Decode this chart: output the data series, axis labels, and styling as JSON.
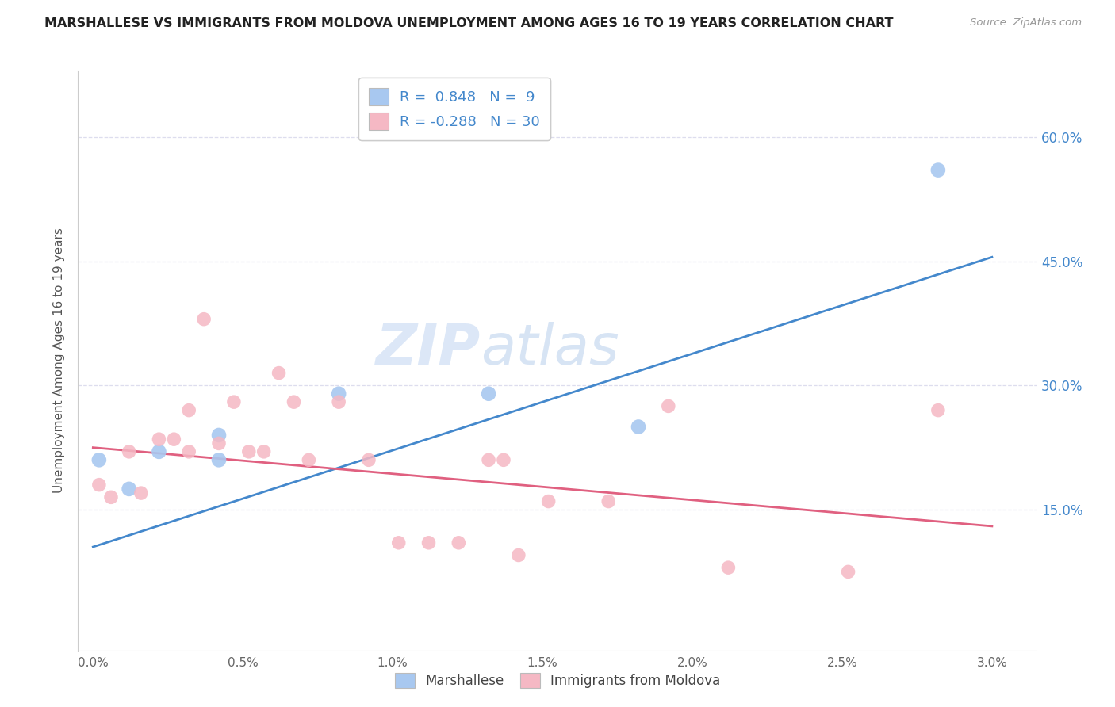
{
  "title": "MARSHALLESE VS IMMIGRANTS FROM MOLDOVA UNEMPLOYMENT AMONG AGES 16 TO 19 YEARS CORRELATION CHART",
  "source": "Source: ZipAtlas.com",
  "xlabel_ticks": [
    "0.0%",
    "0.5%",
    "1.0%",
    "1.5%",
    "2.0%",
    "2.5%",
    "3.0%"
  ],
  "xlabel_vals": [
    0.0,
    0.5,
    1.0,
    1.5,
    2.0,
    2.5,
    3.0
  ],
  "ylabel_ticks": [
    "15.0%",
    "30.0%",
    "45.0%",
    "60.0%"
  ],
  "ylabel_vals": [
    15.0,
    30.0,
    45.0,
    60.0
  ],
  "ylabel_label": "Unemployment Among Ages 16 to 19 years",
  "legend_labels": [
    "Marshallese",
    "Immigrants from Moldova"
  ],
  "blue_R": "0.848",
  "blue_N": "9",
  "pink_R": "-0.288",
  "pink_N": "30",
  "blue_color": "#A8C8F0",
  "pink_color": "#F5B8C4",
  "blue_line_color": "#4488CC",
  "pink_line_color": "#E06080",
  "watermark_zip": "ZIP",
  "watermark_atlas": "atlas",
  "blue_points_x": [
    0.02,
    0.12,
    0.22,
    0.42,
    0.42,
    0.82,
    1.32,
    1.82,
    2.82
  ],
  "blue_points_y": [
    21.0,
    17.5,
    22.0,
    21.0,
    24.0,
    29.0,
    29.0,
    25.0,
    56.0
  ],
  "pink_points_x": [
    0.02,
    0.06,
    0.12,
    0.16,
    0.22,
    0.27,
    0.32,
    0.32,
    0.37,
    0.42,
    0.47,
    0.52,
    0.57,
    0.62,
    0.67,
    0.72,
    0.82,
    0.92,
    1.02,
    1.12,
    1.22,
    1.32,
    1.37,
    1.42,
    1.52,
    1.72,
    1.92,
    2.12,
    2.52,
    2.82
  ],
  "pink_points_y": [
    18.0,
    16.5,
    22.0,
    17.0,
    23.5,
    23.5,
    22.0,
    27.0,
    38.0,
    23.0,
    28.0,
    22.0,
    22.0,
    31.5,
    28.0,
    21.0,
    28.0,
    21.0,
    11.0,
    11.0,
    11.0,
    21.0,
    21.0,
    9.5,
    16.0,
    16.0,
    27.5,
    8.0,
    7.5,
    27.0
  ],
  "xlim": [
    -0.05,
    3.15
  ],
  "ylim": [
    -2,
    68
  ],
  "blue_line_x": [
    0.0,
    3.0
  ],
  "blue_line_y": [
    10.5,
    45.5
  ],
  "pink_line_x": [
    0.0,
    3.0
  ],
  "pink_line_y": [
    22.5,
    13.0
  ],
  "background_color": "#FFFFFF",
  "grid_color": "#DDDDEE"
}
